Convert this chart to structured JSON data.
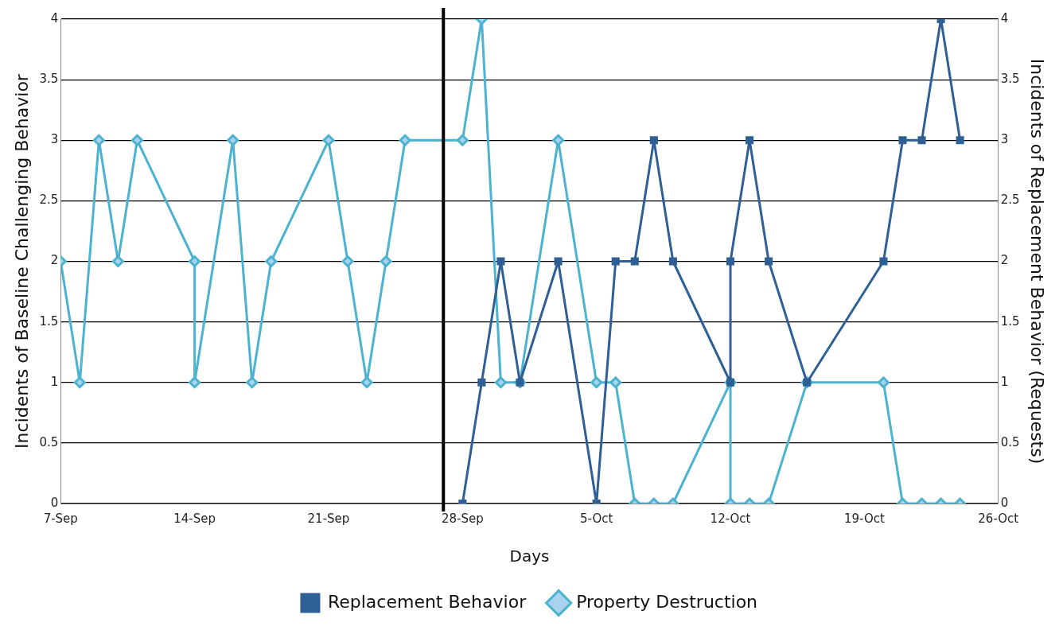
{
  "chart_data": {
    "type": "line",
    "xlabel": "Days",
    "ylabel": "Incidents of Baseline Challenging Behavior",
    "y2label": "Incidents of Replacement Behavior (Requests)",
    "xlim": [
      "--09-07",
      "--10-26"
    ],
    "xticks": [
      {
        "value": "--09-07",
        "label": "7-Sep"
      },
      {
        "value": "--09-14",
        "label": "14-Sep"
      },
      {
        "value": "--09-21",
        "label": "21-Sep"
      },
      {
        "value": "--09-28",
        "label": "28-Sep"
      },
      {
        "value": "--10-05",
        "label": "5-Oct"
      },
      {
        "value": "--10-12",
        "label": "12-Oct"
      },
      {
        "value": "--10-19",
        "label": "19-Oct"
      },
      {
        "value": "--10-26",
        "label": "26-Oct"
      }
    ],
    "ylim": [
      0,
      4
    ],
    "yticks": [
      0,
      0.5,
      1,
      1.5,
      2,
      2.5,
      3,
      3.5,
      4
    ],
    "y2lim": [
      0,
      4
    ],
    "y2ticks": [
      0,
      0.5,
      1,
      1.5,
      2,
      2.5,
      3,
      3.5,
      4
    ],
    "grid": "y",
    "legend": "bottom",
    "ref_lines": [
      {
        "axis": "x",
        "value": "--09-27",
        "color": "#000000"
      }
    ],
    "series": [
      {
        "name": "Property Destruction",
        "color": "#4bb3cf",
        "marker": "diamond",
        "x": [
          "--09-07",
          "--09-08",
          "--09-09",
          "--09-10",
          "--09-11",
          "--09-14",
          "--09-14",
          "--09-16",
          "--09-17",
          "--09-18",
          "--09-21",
          "--09-22",
          "--09-23",
          "--09-24",
          "--09-25",
          "--09-28",
          "--09-29",
          "--09-30",
          "--10-01",
          "--10-03",
          "--10-05",
          "--10-06",
          "--10-07",
          "--10-08",
          "--10-09",
          "--10-12",
          "--10-12",
          "--10-13",
          "--10-14",
          "--10-16",
          "--10-20",
          "--10-21",
          "--10-22",
          "--10-23",
          "--10-24"
        ],
        "values": [
          2,
          1,
          3,
          2,
          3,
          2,
          1,
          3,
          1,
          2,
          3,
          2,
          1,
          2,
          3,
          3,
          4,
          1,
          1,
          3,
          1,
          1,
          0,
          0,
          0,
          1,
          0,
          0,
          0,
          1,
          1,
          0,
          0,
          0,
          0
        ]
      },
      {
        "name": "Replacement Behavior",
        "color": "#2e5f95",
        "marker": "square",
        "axis": "y2",
        "x": [
          "--09-28",
          "--09-29",
          "--09-30",
          "--10-01",
          "--10-03",
          "--10-05",
          "--10-06",
          "--10-07",
          "--10-08",
          "--10-09",
          "--10-12",
          "--10-12",
          "--10-13",
          "--10-14",
          "--10-16",
          "--10-20",
          "--10-21",
          "--10-22",
          "--10-23",
          "--10-24"
        ],
        "values": [
          0,
          1,
          2,
          1,
          2,
          0,
          2,
          2,
          3,
          2,
          1,
          2,
          3,
          2,
          1,
          2,
          3,
          3,
          4,
          3
        ]
      }
    ]
  }
}
